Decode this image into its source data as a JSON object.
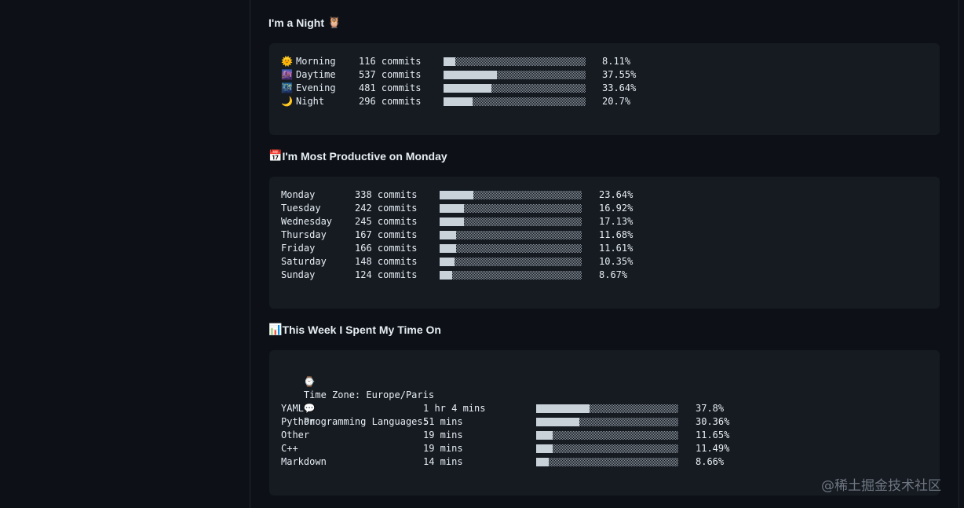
{
  "sections": {
    "night": {
      "title": "I'm a Night",
      "title_icon": "🦉",
      "rows": [
        {
          "icon": "🌞",
          "label": "Morning",
          "commits": "116 commits",
          "percent": "8.11%",
          "fraction": 0.0811
        },
        {
          "icon": "🌆",
          "label": "Daytime",
          "commits": "537 commits",
          "percent": "37.55%",
          "fraction": 0.3755
        },
        {
          "icon": "🌃",
          "label": "Evening",
          "commits": "481 commits",
          "percent": "33.64%",
          "fraction": 0.3364
        },
        {
          "icon": "🌙",
          "label": "Night",
          "commits": "296 commits",
          "percent": "20.7%",
          "fraction": 0.207
        }
      ]
    },
    "productive": {
      "title": "I'm Most Productive on Monday",
      "title_icon": "📅",
      "rows": [
        {
          "label": "Monday",
          "commits": "338 commits",
          "percent": "23.64%",
          "fraction": 0.2364
        },
        {
          "label": "Tuesday",
          "commits": "242 commits",
          "percent": "16.92%",
          "fraction": 0.1692
        },
        {
          "label": "Wednesday",
          "commits": "245 commits",
          "percent": "17.13%",
          "fraction": 0.1713
        },
        {
          "label": "Thursday",
          "commits": "167 commits",
          "percent": "11.68%",
          "fraction": 0.1168
        },
        {
          "label": "Friday",
          "commits": "166 commits",
          "percent": "11.61%",
          "fraction": 0.1161
        },
        {
          "label": "Saturday",
          "commits": "148 commits",
          "percent": "10.35%",
          "fraction": 0.1035
        },
        {
          "label": "Sunday",
          "commits": "124 commits",
          "percent": "8.67%",
          "fraction": 0.0867
        }
      ]
    },
    "week": {
      "title": "This Week I Spent My Time On",
      "title_icon": "📊",
      "timezone_icon": "⌚",
      "timezone": "Time Zone: Europe/Paris",
      "languages_icon": "💬",
      "languages_label": "Programming Languages:",
      "rows": [
        {
          "label": "YAML",
          "time": "1 hr 4 mins",
          "percent": "37.8%",
          "fraction": 0.378
        },
        {
          "label": "Python",
          "time": "51 mins",
          "percent": "30.36%",
          "fraction": 0.3036
        },
        {
          "label": "Other",
          "time": "19 mins",
          "percent": "11.65%",
          "fraction": 0.1165
        },
        {
          "label": "C++",
          "time": "19 mins",
          "percent": "11.49%",
          "fraction": 0.1149
        },
        {
          "label": "Markdown",
          "time": "14 mins",
          "percent": "8.66%",
          "fraction": 0.0866
        }
      ]
    }
  },
  "watermark": "@稀土掘金技术社区"
}
